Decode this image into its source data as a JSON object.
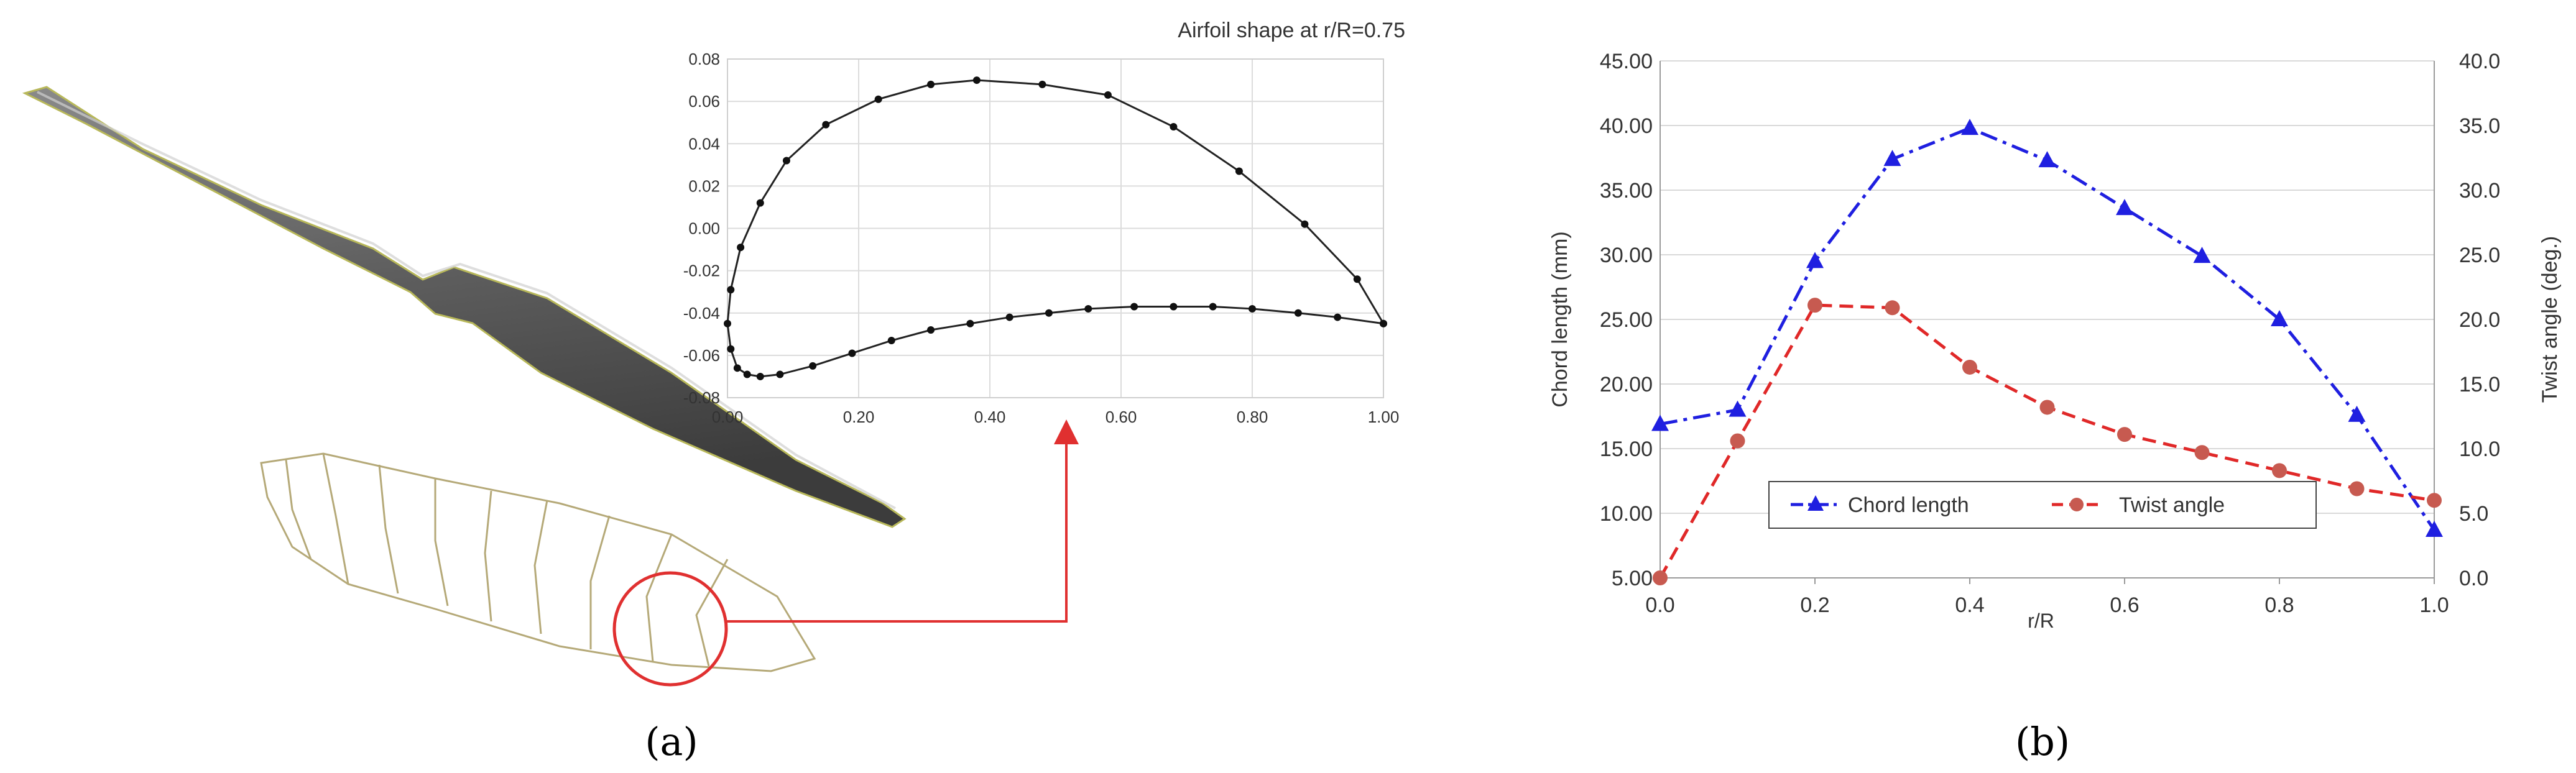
{
  "panel_a_label": "(a)",
  "panel_b_label": "(b)",
  "chart_data": [
    {
      "type": "line",
      "title": "Airfoil shape at r/R=0.75",
      "xlabel": "",
      "ylabel": "",
      "xlim": [
        0.0,
        1.0
      ],
      "ylim": [
        -0.08,
        0.08
      ],
      "xticks": [
        "0.00",
        "0.20",
        "0.40",
        "0.60",
        "0.80",
        "1.00"
      ],
      "yticks": [
        "0.08",
        "0.06",
        "0.04",
        "0.02",
        "0.00",
        "-0.02",
        "-0.04",
        "-0.06",
        "-0.08"
      ],
      "grid": true,
      "series": [
        {
          "x": [
            1.0,
            0.96,
            0.88,
            0.78,
            0.68,
            0.58,
            0.48,
            0.38,
            0.31,
            0.23,
            0.15,
            0.09,
            0.05,
            0.02,
            0.005,
            0.0,
            0.005,
            0.015,
            0.03,
            0.05,
            0.08,
            0.13,
            0.19,
            0.25,
            0.31,
            0.37,
            0.43,
            0.49,
            0.55,
            0.62,
            0.68,
            0.74,
            0.8,
            0.87,
            0.93,
            1.0
          ],
          "y": [
            -0.045,
            -0.024,
            0.002,
            0.027,
            0.048,
            0.063,
            0.068,
            0.07,
            0.068,
            0.061,
            0.049,
            0.032,
            0.012,
            -0.009,
            -0.029,
            -0.045,
            -0.057,
            -0.066,
            -0.069,
            -0.07,
            -0.069,
            -0.065,
            -0.059,
            -0.053,
            -0.048,
            -0.045,
            -0.042,
            -0.04,
            -0.038,
            -0.037,
            -0.037,
            -0.037,
            -0.038,
            -0.04,
            -0.042,
            -0.045
          ]
        }
      ]
    },
    {
      "type": "line",
      "title": "",
      "xlabel": "r/R",
      "ylabel": "Chord length (mm)",
      "y2label": "Twist angle (deg.)",
      "categories": [
        0.0,
        0.1,
        0.2,
        0.3,
        0.4,
        0.5,
        0.6,
        0.7,
        0.8,
        0.9,
        1.0
      ],
      "xlim": [
        0.0,
        1.0
      ],
      "ylim": [
        5.0,
        45.0
      ],
      "y2lim": [
        0.0,
        40.0
      ],
      "xticks": [
        "0.0",
        "0.2",
        "0.4",
        "0.6",
        "0.8",
        "1.0"
      ],
      "yticks": [
        "45.00",
        "40.00",
        "35.00",
        "30.00",
        "25.00",
        "20.00",
        "15.00",
        "10.00",
        "5.00"
      ],
      "y2ticks": [
        "40.0",
        "35.0",
        "30.0",
        "25.0",
        "20.0",
        "15.0",
        "10.0",
        "5.0",
        "0.0"
      ],
      "grid": true,
      "legend_position": "bottom-center",
      "series": [
        {
          "name": "Chord length",
          "axis": "left",
          "color": "#1f1fe0",
          "values": [
            16.9,
            18.0,
            29.5,
            37.4,
            39.8,
            37.3,
            33.6,
            29.9,
            25.0,
            17.6,
            8.7
          ]
        },
        {
          "name": "Twist angle",
          "axis": "right",
          "color": "#e02828",
          "values": [
            0.0,
            10.6,
            21.1,
            20.9,
            16.3,
            13.2,
            11.1,
            9.7,
            8.3,
            6.9,
            6.0
          ]
        }
      ]
    }
  ]
}
